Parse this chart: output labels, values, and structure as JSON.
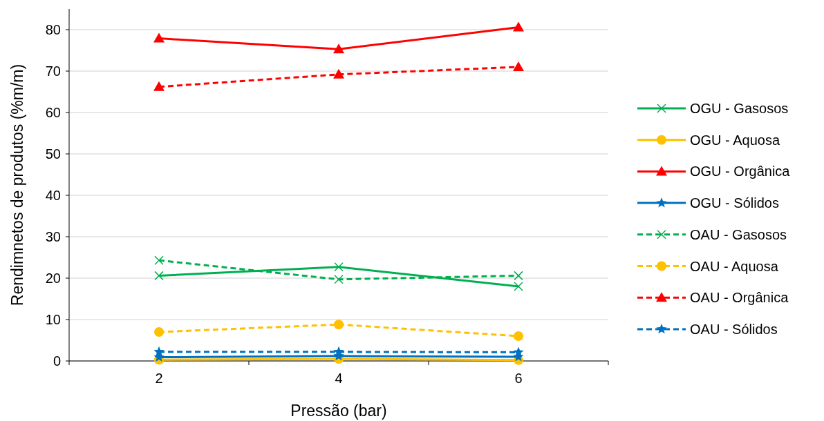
{
  "chart_data": {
    "type": "line",
    "xlabel": "Pressão (bar)",
    "ylabel": "Rendimnetos de produtos (%m/m)",
    "categories": [
      "2",
      "4",
      "6"
    ],
    "ylim": [
      0,
      85
    ],
    "yticks": [
      0,
      10,
      20,
      30,
      40,
      50,
      60,
      70,
      80
    ],
    "grid": "y",
    "legend": "right",
    "series": [
      {
        "name": "OGU - Gasosos",
        "color": "#00b050",
        "marker": "cross",
        "line_style": "solid",
        "values": [
          20.6,
          22.7,
          18.0
        ]
      },
      {
        "name": "OGU - Aquosa",
        "color": "#ffc000",
        "marker": "circle",
        "line_style": "solid",
        "values": [
          0.3,
          0.5,
          0.2
        ]
      },
      {
        "name": "OGU - Orgânica",
        "color": "#ff0000",
        "marker": "triangle",
        "line_style": "solid",
        "values": [
          77.9,
          75.3,
          80.6
        ]
      },
      {
        "name": "OGU - Sólidos",
        "color": "#0070c0",
        "marker": "star",
        "line_style": "solid",
        "values": [
          0.9,
          1.2,
          1.0
        ]
      },
      {
        "name": "OAU - Gasosos",
        "color": "#00b050",
        "marker": "cross",
        "line_style": "dashed",
        "values": [
          24.3,
          19.7,
          20.6
        ]
      },
      {
        "name": "OAU - Aquosa",
        "color": "#ffc000",
        "marker": "circle",
        "line_style": "dashed",
        "values": [
          7.0,
          8.8,
          6.0
        ]
      },
      {
        "name": "OAU - Orgânica",
        "color": "#ff0000",
        "marker": "triangle",
        "line_style": "dashed",
        "values": [
          66.2,
          69.2,
          71.0
        ]
      },
      {
        "name": "OAU - Sólidos",
        "color": "#0070c0",
        "marker": "star",
        "line_style": "dashed",
        "values": [
          2.2,
          2.2,
          2.1
        ]
      }
    ]
  }
}
